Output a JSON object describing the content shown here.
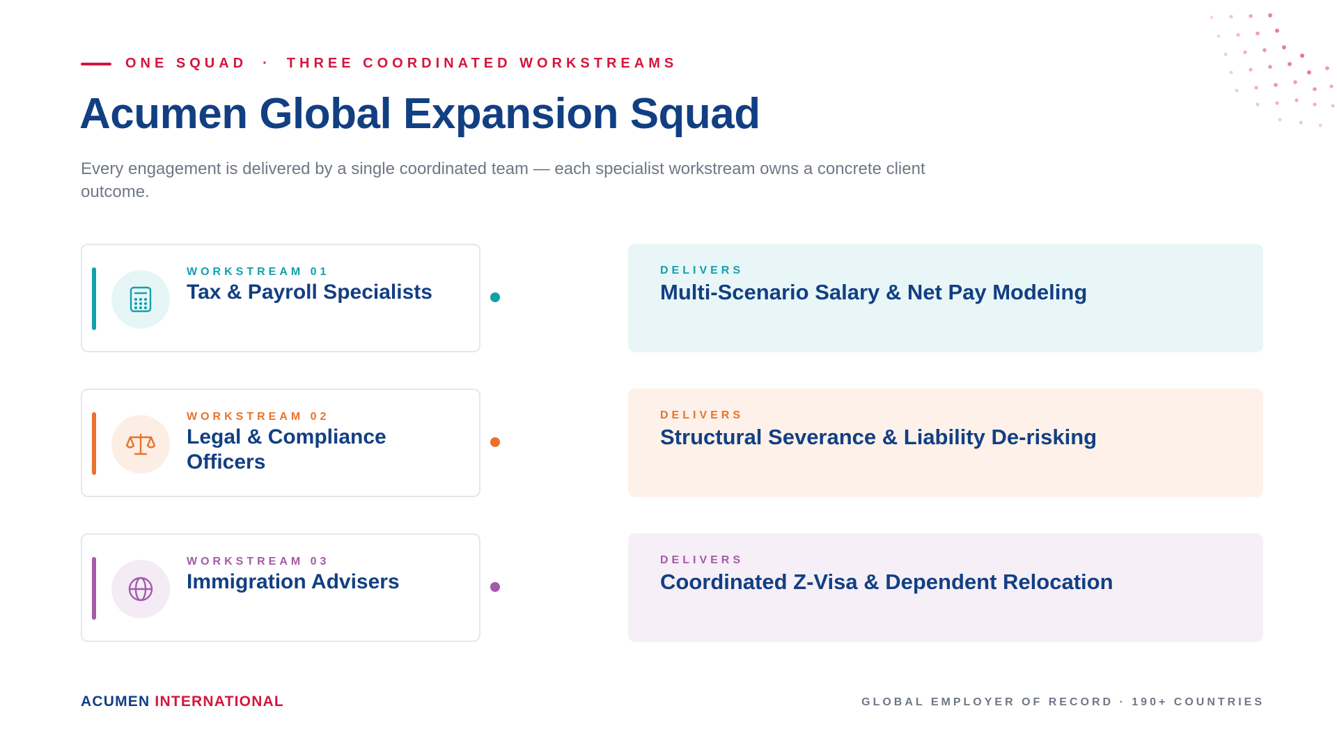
{
  "header": {
    "eyebrow_left": "ONE SQUAD",
    "eyebrow_sep": "·",
    "eyebrow_right": "THREE COORDINATED WORKSTREAMS",
    "title": "Acumen Global Expansion Squad",
    "subtitle": "Every engagement is delivered by a single coordinated team — each specialist workstream owns a concrete client outcome."
  },
  "colors": {
    "accent_red": "#d4163c",
    "navy": "#123f82",
    "teal": "#12a0ad",
    "orange": "#e8722c",
    "purple": "#a45aa8"
  },
  "workstreams": [
    {
      "label": "WORKSTREAM 01",
      "name": "Tax & Payroll Specialists",
      "icon": "calculator-icon",
      "delivers_label": "DELIVERS",
      "outcome": "Multi-Scenario Salary & Net Pay Modeling"
    },
    {
      "label": "WORKSTREAM 02",
      "name": "Legal & Compliance Officers",
      "icon": "scales-icon",
      "delivers_label": "DELIVERS",
      "outcome": "Structural Severance & Liability De-risking"
    },
    {
      "label": "WORKSTREAM 03",
      "name": "Immigration Advisers",
      "icon": "globe-icon",
      "delivers_label": "DELIVERS",
      "outcome": "Coordinated Z-Visa & Dependent Relocation"
    }
  ],
  "footer": {
    "brand_part1": "ACUMEN",
    "brand_part2": "INTERNATIONAL",
    "tagline": "GLOBAL EMPLOYER OF RECORD · 190+ COUNTRIES"
  }
}
